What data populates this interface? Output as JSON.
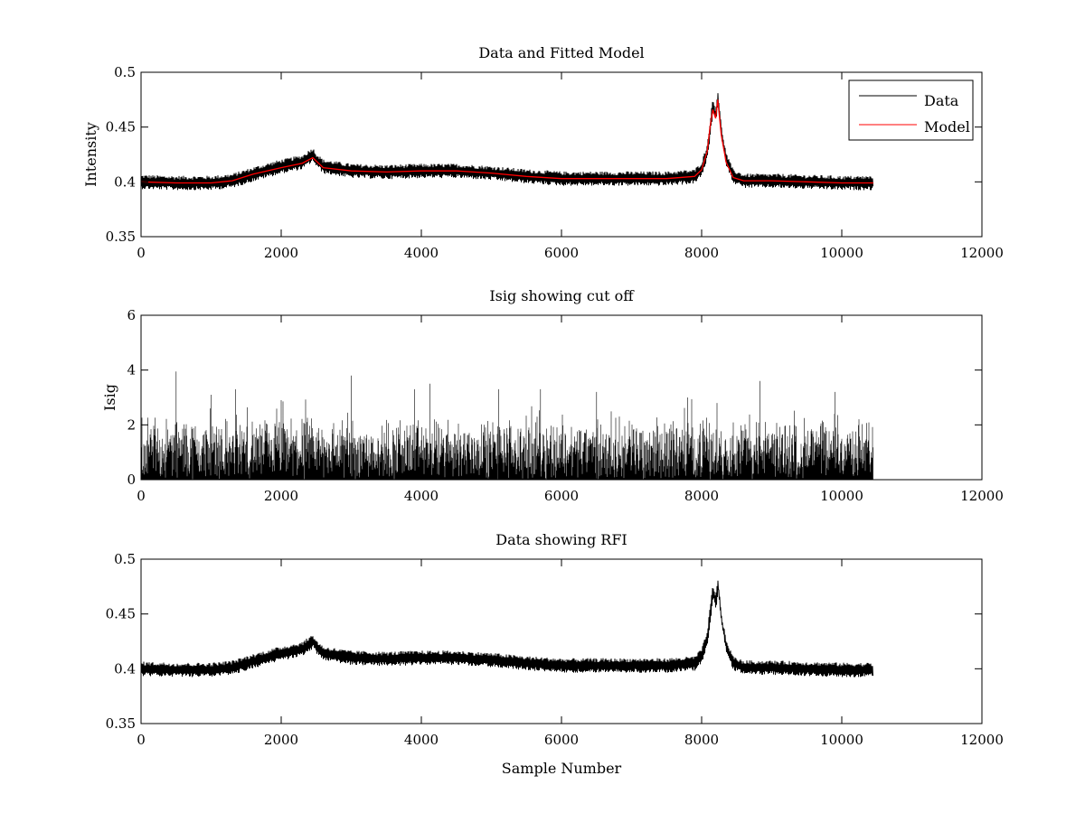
{
  "chart_data": [
    {
      "type": "line",
      "title": "Data and Fitted Model",
      "xlabel": "",
      "ylabel": "Intensity",
      "xlim": [
        0,
        12000
      ],
      "ylim": [
        0.35,
        0.5
      ],
      "xticks": [
        "0",
        "2000",
        "4000",
        "6000",
        "8000",
        "10000",
        "12000"
      ],
      "yticks": [
        "0.35",
        "0.4",
        "0.45",
        "0.5"
      ],
      "legend": {
        "placement": "top-right",
        "entries": [
          "Data",
          "Model"
        ]
      },
      "series": [
        {
          "name": "Data",
          "color": "#000000",
          "style": "noisy",
          "noise_amplitude": 0.006,
          "x": [
            0,
            500,
            1000,
            1300,
            1600,
            2000,
            2300,
            2450,
            2500,
            2600,
            3000,
            3500,
            4000,
            4500,
            5000,
            5500,
            6000,
            6500,
            7000,
            7500,
            7900,
            8000,
            8080,
            8120,
            8160,
            8200,
            8230,
            8280,
            8350,
            8450,
            8600,
            9000,
            9500,
            10000,
            10450
          ],
          "y": [
            0.4,
            0.399,
            0.399,
            0.401,
            0.407,
            0.414,
            0.418,
            0.425,
            0.42,
            0.414,
            0.41,
            0.409,
            0.41,
            0.41,
            0.408,
            0.405,
            0.403,
            0.403,
            0.403,
            0.403,
            0.405,
            0.412,
            0.428,
            0.45,
            0.47,
            0.46,
            0.478,
            0.445,
            0.42,
            0.405,
            0.401,
            0.401,
            0.4,
            0.399,
            0.399
          ]
        },
        {
          "name": "Model",
          "color": "#ff0000",
          "style": "smooth",
          "x": [
            0,
            500,
            1000,
            1300,
            1600,
            2000,
            2300,
            2450,
            2500,
            2600,
            3000,
            3500,
            4000,
            4500,
            5000,
            5500,
            6000,
            6500,
            7000,
            7500,
            7900,
            8000,
            8080,
            8120,
            8160,
            8200,
            8230,
            8280,
            8350,
            8450,
            8600,
            9000,
            9500,
            10000,
            10450
          ],
          "y": [
            0.4,
            0.399,
            0.399,
            0.401,
            0.407,
            0.413,
            0.417,
            0.422,
            0.419,
            0.413,
            0.41,
            0.409,
            0.41,
            0.41,
            0.408,
            0.405,
            0.403,
            0.403,
            0.403,
            0.403,
            0.405,
            0.411,
            0.428,
            0.45,
            0.466,
            0.458,
            0.475,
            0.443,
            0.418,
            0.404,
            0.401,
            0.401,
            0.4,
            0.399,
            0.399
          ]
        }
      ]
    },
    {
      "type": "line",
      "title": "Isig showing cut off",
      "xlabel": "",
      "ylabel": "Isig",
      "xlim": [
        0,
        12000
      ],
      "ylim": [
        0,
        6
      ],
      "xticks": [
        "0",
        "2000",
        "4000",
        "6000",
        "8000",
        "10000",
        "12000"
      ],
      "yticks": [
        "0",
        "2",
        "4",
        "6"
      ],
      "series": [
        {
          "name": "Isig",
          "color": "#000000",
          "style": "abs-noise",
          "x_start": 0,
          "x_end": 10450,
          "typical_max": 2.0,
          "peaks": [
            {
              "x": 500,
              "y": 3.95
            },
            {
              "x": 1000,
              "y": 3.1
            },
            {
              "x": 1350,
              "y": 3.3
            },
            {
              "x": 2000,
              "y": 2.9
            },
            {
              "x": 3000,
              "y": 3.8
            },
            {
              "x": 3900,
              "y": 3.3
            },
            {
              "x": 4120,
              "y": 3.5
            },
            {
              "x": 5100,
              "y": 3.3
            },
            {
              "x": 5700,
              "y": 3.3
            },
            {
              "x": 6500,
              "y": 3.2
            },
            {
              "x": 7800,
              "y": 3.0
            },
            {
              "x": 8830,
              "y": 3.6
            },
            {
              "x": 9900,
              "y": 3.2
            }
          ]
        }
      ]
    },
    {
      "type": "line",
      "title": "Data showing RFI",
      "xlabel": "Sample Number",
      "ylabel": "",
      "xlim": [
        0,
        12000
      ],
      "ylim": [
        0.35,
        0.5
      ],
      "xticks": [
        "0",
        "2000",
        "4000",
        "6000",
        "8000",
        "10000",
        "12000"
      ],
      "yticks": [
        "0.35",
        "0.4",
        "0.45",
        "0.5"
      ],
      "series": [
        {
          "name": "Data",
          "color": "#000000",
          "style": "noisy",
          "noise_amplitude": 0.006,
          "x": [
            0,
            500,
            1000,
            1300,
            1600,
            2000,
            2300,
            2450,
            2500,
            2600,
            3000,
            3500,
            4000,
            4500,
            5000,
            5500,
            6000,
            6500,
            7000,
            7500,
            7900,
            8000,
            8080,
            8120,
            8160,
            8200,
            8230,
            8280,
            8350,
            8450,
            8600,
            9000,
            9500,
            10000,
            10450
          ],
          "y": [
            0.4,
            0.399,
            0.399,
            0.401,
            0.407,
            0.414,
            0.418,
            0.425,
            0.42,
            0.414,
            0.41,
            0.409,
            0.41,
            0.41,
            0.408,
            0.405,
            0.403,
            0.403,
            0.403,
            0.403,
            0.405,
            0.412,
            0.428,
            0.45,
            0.47,
            0.46,
            0.478,
            0.445,
            0.42,
            0.405,
            0.401,
            0.401,
            0.4,
            0.399,
            0.399
          ]
        }
      ]
    }
  ]
}
